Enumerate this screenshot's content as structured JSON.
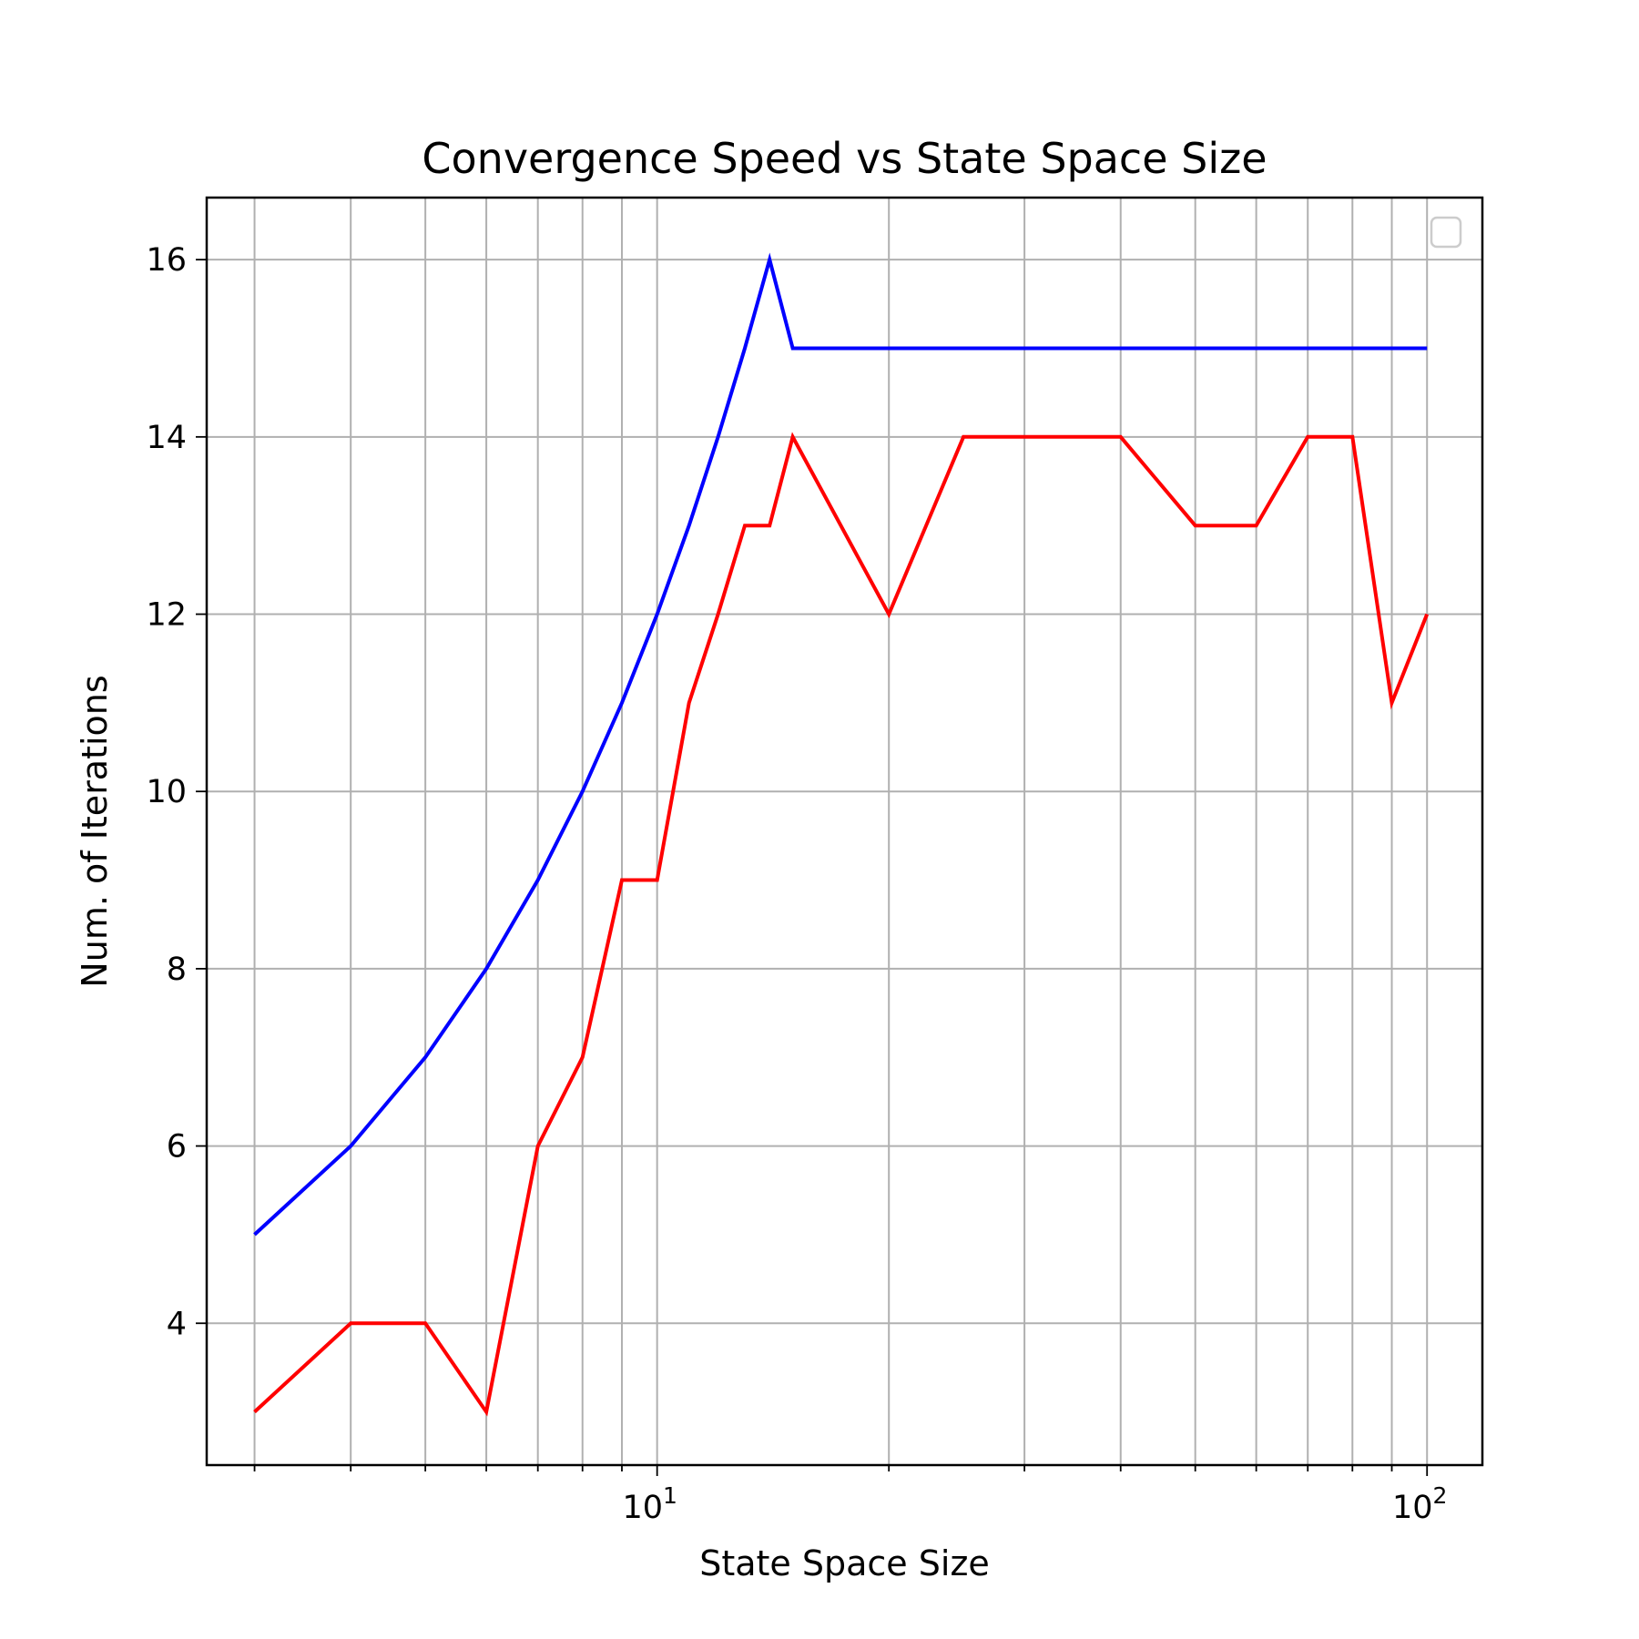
{
  "chart_data": {
    "type": "line",
    "title": "Convergence Speed vs State Space Size",
    "xlabel": "State Space Size",
    "ylabel": "Num. of Iterations",
    "xscale": "log",
    "xlim": [
      2.6,
      118
    ],
    "ylim": [
      2.4,
      16.7
    ],
    "grid": true,
    "legend": "top-right, empty box",
    "x_major_ticks": [
      {
        "value": 10,
        "base": "10",
        "exp": "1"
      },
      {
        "value": 100,
        "base": "10",
        "exp": "2"
      }
    ],
    "x_minor_ticks": [
      3,
      4,
      5,
      6,
      7,
      8,
      9,
      20,
      30,
      40,
      50,
      60,
      70,
      80,
      90
    ],
    "y_ticks": [
      {
        "value": 4,
        "label": "4"
      },
      {
        "value": 6,
        "label": "6"
      },
      {
        "value": 8,
        "label": "8"
      },
      {
        "value": 10,
        "label": "10"
      },
      {
        "value": 12,
        "label": "12"
      },
      {
        "value": 14,
        "label": "14"
      },
      {
        "value": 16,
        "label": "16"
      }
    ],
    "series": [
      {
        "color": "#0000ff",
        "points": [
          [
            3,
            5
          ],
          [
            4,
            6
          ],
          [
            5,
            7
          ],
          [
            6,
            8
          ],
          [
            7,
            9
          ],
          [
            8,
            10
          ],
          [
            9,
            11
          ],
          [
            10,
            12
          ],
          [
            11,
            13
          ],
          [
            12,
            14
          ],
          [
            13,
            15
          ],
          [
            14,
            16
          ],
          [
            15,
            15
          ],
          [
            20,
            15
          ],
          [
            30,
            15
          ],
          [
            40,
            15
          ],
          [
            50,
            15
          ],
          [
            60,
            15
          ],
          [
            70,
            15
          ],
          [
            80,
            15
          ],
          [
            90,
            15
          ],
          [
            100,
            15
          ]
        ]
      },
      {
        "color": "#ff0000",
        "points": [
          [
            3,
            3
          ],
          [
            4,
            4
          ],
          [
            5,
            4
          ],
          [
            6,
            3
          ],
          [
            7,
            6
          ],
          [
            8,
            7
          ],
          [
            9,
            9
          ],
          [
            10,
            9
          ],
          [
            11,
            11
          ],
          [
            12,
            12
          ],
          [
            13,
            13
          ],
          [
            14,
            13
          ],
          [
            15,
            14
          ],
          [
            20,
            12
          ],
          [
            25,
            14
          ],
          [
            30,
            14
          ],
          [
            40,
            14
          ],
          [
            50,
            13
          ],
          [
            60,
            13
          ],
          [
            70,
            14
          ],
          [
            80,
            14
          ],
          [
            90,
            11
          ],
          [
            100,
            12
          ]
        ]
      }
    ]
  }
}
